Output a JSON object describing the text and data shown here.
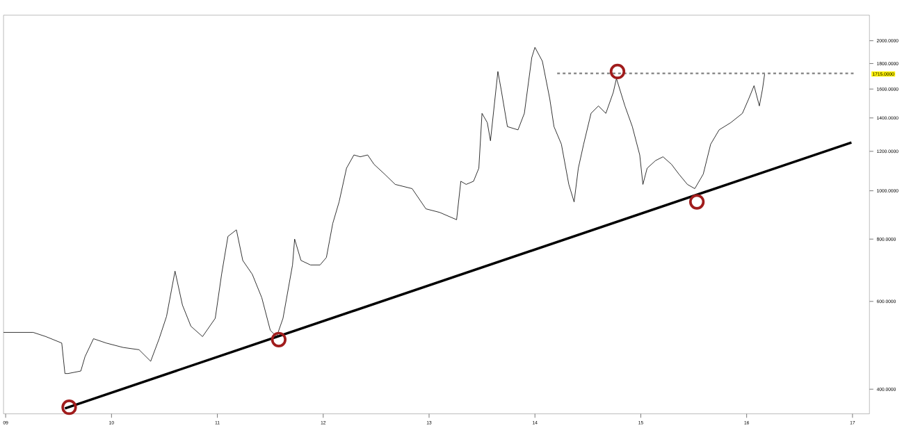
{
  "chart_data": {
    "type": "line",
    "log": "y",
    "marker": "none",
    "xlim": [
      2008.98,
      2017.16
    ],
    "ylim": [
      357,
      2250
    ],
    "xticks": [
      {
        "value": 2009,
        "label": "09"
      },
      {
        "value": 2010,
        "label": "10"
      },
      {
        "value": 2011,
        "label": "11"
      },
      {
        "value": 2012,
        "label": "12"
      },
      {
        "value": 2013,
        "label": "13"
      },
      {
        "value": 2014,
        "label": "14"
      },
      {
        "value": 2015,
        "label": "15"
      },
      {
        "value": 2016,
        "label": "16"
      },
      {
        "value": 2017,
        "label": "17"
      }
    ],
    "yticks": [
      {
        "value": 400,
        "label": "400.0000"
      },
      {
        "value": 600,
        "label": "600.0000"
      },
      {
        "value": 800,
        "label": "800.0000"
      },
      {
        "value": 1000,
        "label": "1000.0000"
      },
      {
        "value": 1200,
        "label": "1200.0000"
      },
      {
        "value": 1400,
        "label": "1400.0000"
      },
      {
        "value": 1600,
        "label": "1600.0000"
      },
      {
        "value": 1800,
        "label": "1800.0000"
      },
      {
        "value": 2000,
        "label": "2000.0000"
      }
    ],
    "annotations": [
      "1715.0000"
    ],
    "series": [
      {
        "color": "#000000",
        "x": [
          2008.98,
          2009.26,
          2009.38,
          2009.53,
          2009.56,
          2009.59,
          2009.71,
          2009.75,
          2009.83,
          2009.95,
          2010.11,
          2010.26,
          2010.37,
          2010.45,
          2010.52,
          2010.6,
          2010.67,
          2010.75,
          2010.86,
          2010.98,
          2011.04,
          2011.1,
          2011.18,
          2011.24,
          2011.33,
          2011.42,
          2011.5,
          2011.56,
          2011.62,
          2011.71,
          2011.73,
          2011.79,
          2011.88,
          2011.97,
          2012.03,
          2012.09,
          2012.15,
          2012.22,
          2012.29,
          2012.35,
          2012.42,
          2012.48,
          2012.58,
          2012.68,
          2012.84,
          2012.97,
          2013.1,
          2013.26,
          2013.3,
          2013.35,
          2013.42,
          2013.47,
          2013.5,
          2013.55,
          2013.58,
          2013.65,
          2013.68,
          2013.74,
          2013.84,
          2013.9,
          2013.97,
          2014.0,
          2014.07,
          2014.14,
          2014.18,
          2014.25,
          2014.32,
          2014.37,
          2014.41,
          2014.46,
          2014.53,
          2014.6,
          2014.67,
          2014.74,
          2014.77,
          2014.85,
          2014.92,
          2014.99,
          2015.02,
          2015.06,
          2015.14,
          2015.21,
          2015.29,
          2015.36,
          2015.44,
          2015.51,
          2015.59,
          2015.66,
          2015.74,
          2015.85,
          2015.96,
          2016.02,
          2016.07,
          2016.12,
          2016.15,
          2016.17
        ],
        "values": [
          520,
          520,
          510,
          495,
          430,
          430,
          435,
          465,
          505,
          495,
          485,
          480,
          455,
          505,
          560,
          690,
          590,
          535,
          510,
          555,
          680,
          810,
          835,
          725,
          680,
          610,
          525,
          510,
          555,
          710,
          800,
          725,
          710,
          710,
          735,
          860,
          950,
          1110,
          1180,
          1170,
          1180,
          1130,
          1080,
          1030,
          1010,
          920,
          905,
          875,
          1045,
          1030,
          1045,
          1110,
          1430,
          1370,
          1260,
          1735,
          1600,
          1345,
          1325,
          1430,
          1850,
          1940,
          1820,
          1530,
          1345,
          1240,
          1030,
          950,
          1110,
          1240,
          1430,
          1480,
          1430,
          1575,
          1680,
          1480,
          1345,
          1180,
          1030,
          1110,
          1150,
          1170,
          1130,
          1080,
          1030,
          1010,
          1080,
          1240,
          1325,
          1370,
          1430,
          1530,
          1625,
          1480,
          1600,
          1715
        ]
      },
      {
        "color": "#000000",
        "x": [
          2009.56,
          2016.99
        ],
        "values": [
          366,
          1250
        ]
      },
      {
        "color": "#808080",
        "line_style": "dashed",
        "x": [
          2014.21,
          2017.01
        ],
        "values": [
          1720,
          1720
        ]
      },
      {
        "type": "scatter",
        "color": "#a01c1c",
        "marker": "circle",
        "x": [
          2009.6,
          2011.58,
          2014.78,
          2015.53
        ],
        "values": [
          368,
          503,
          1735,
          950
        ]
      }
    ]
  }
}
